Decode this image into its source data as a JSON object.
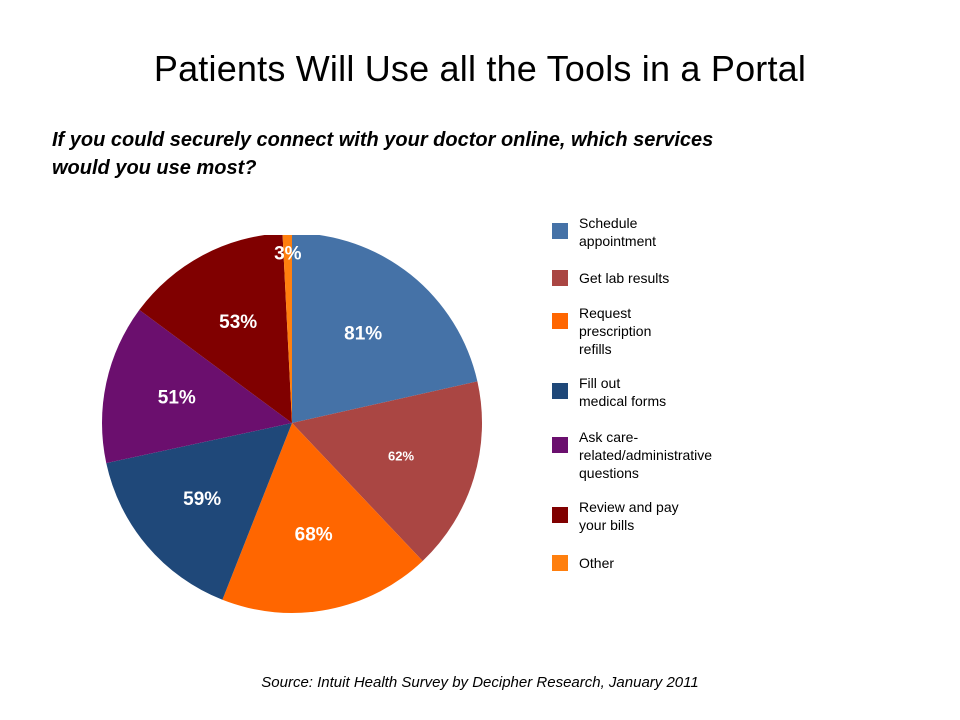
{
  "page": {
    "title": "Patients Will Use all the Tools in a Portal",
    "subtitle_line1": "If you could securely connect with your doctor online, which services",
    "subtitle_line2": "would you use most?",
    "source": "Source: Intuit Health Survey by Decipher Research, January 2011"
  },
  "chart_data": {
    "type": "pie",
    "title": "",
    "legend_position": "right",
    "slices": [
      {
        "label": "Schedule appointment",
        "legend_lines": [
          "Schedule",
          "appointment"
        ],
        "value": 81,
        "value_label": "81%",
        "color": "#4572a7"
      },
      {
        "label": "Get lab results",
        "legend_lines": [
          "Get lab results"
        ],
        "value": 62,
        "value_label": "62%",
        "color": "#aa4643"
      },
      {
        "label": "Request prescription refills",
        "legend_lines": [
          "Request",
          "prescription",
          "refills"
        ],
        "value": 68,
        "value_label": "68%",
        "color": "#ff6600"
      },
      {
        "label": "Fill out medical forms",
        "legend_lines": [
          "Fill out",
          "medical forms"
        ],
        "value": 59,
        "value_label": "59%",
        "color": "#1f4879"
      },
      {
        "label": "Ask care-related/administrative questions",
        "legend_lines": [
          "Ask care-",
          "related/administrative",
          "questions"
        ],
        "value": 51,
        "value_label": "51%",
        "color": "#6b0f6e"
      },
      {
        "label": "Review and pay your bills",
        "legend_lines": [
          "Review and pay",
          "your bills"
        ],
        "value": 53,
        "value_label": "53%",
        "color": "#800000"
      },
      {
        "label": "Other",
        "legend_lines": [
          "Other"
        ],
        "value": 3,
        "value_label": "3%",
        "color": "#ff7f0e"
      }
    ]
  }
}
